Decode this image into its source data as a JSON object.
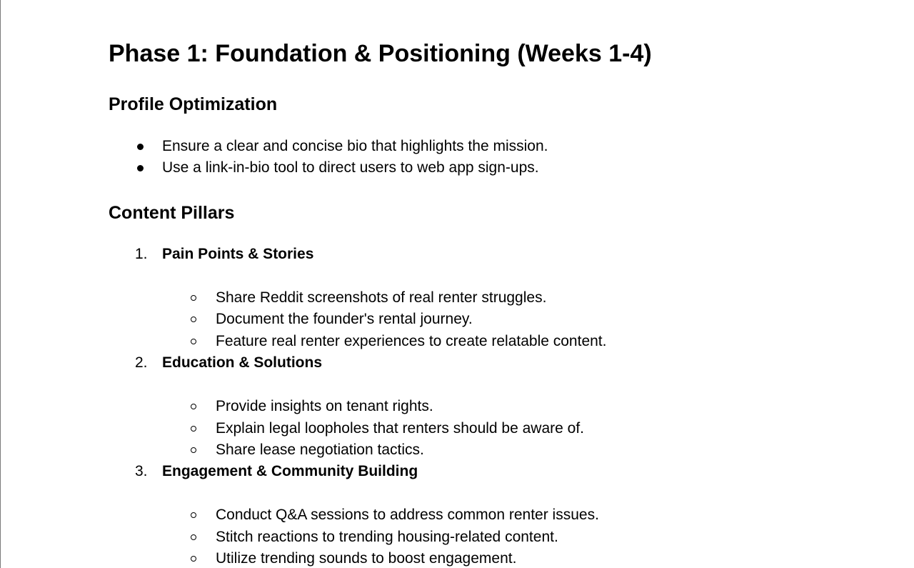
{
  "document": {
    "title": "Phase 1: Foundation & Positioning (Weeks 1-4)",
    "profile": {
      "heading": "Profile Optimization",
      "bullets": [
        "Ensure a clear and concise bio that highlights the mission.",
        "Use a link-in-bio tool to direct users to web app sign-ups."
      ]
    },
    "pillars": {
      "heading": "Content Pillars",
      "items": [
        {
          "number": "1.",
          "title": "Pain Points & Stories",
          "subitems": [
            "Share Reddit screenshots of real renter struggles.",
            "Document the founder's rental journey.",
            "Feature real renter experiences to create relatable content."
          ]
        },
        {
          "number": "2.",
          "title": "Education & Solutions",
          "subitems": [
            "Provide insights on tenant rights.",
            "Explain legal loopholes that renters should be aware of.",
            "Share lease negotiation tactics."
          ]
        },
        {
          "number": "3.",
          "title": "Engagement & Community Building",
          "subitems": [
            "Conduct Q&A sessions to address common renter issues.",
            "Stitch reactions to trending housing-related content.",
            "Utilize trending sounds to boost engagement."
          ]
        }
      ]
    }
  }
}
